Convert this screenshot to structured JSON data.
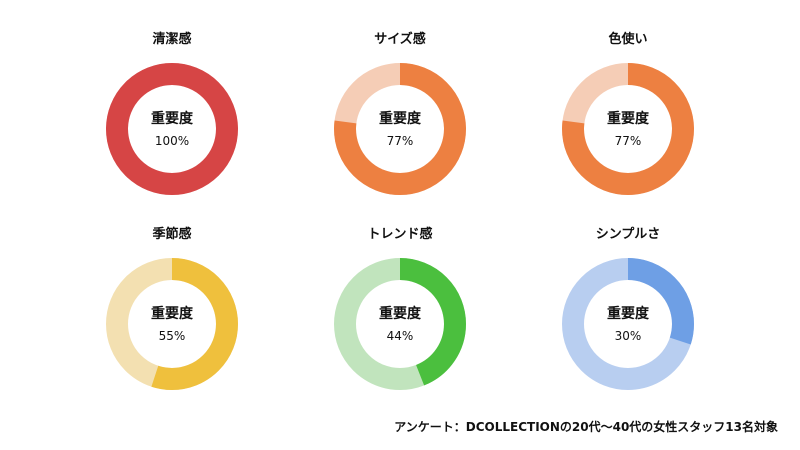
{
  "chart_data": {
    "type": "pie",
    "subtype": "donut",
    "center_label": "重要度",
    "charts": [
      {
        "title": "清潔感",
        "value": 100,
        "display": "100%",
        "color": "#d64545",
        "track": "#f2c4c4"
      },
      {
        "title": "サイズ感",
        "value": 77,
        "display": "77%",
        "color": "#ed8041",
        "track": "#f5cdb6"
      },
      {
        "title": "色使い",
        "value": 77,
        "display": "77%",
        "color": "#ed8041",
        "track": "#f5cdb6"
      },
      {
        "title": "季節感",
        "value": 55,
        "display": "55%",
        "color": "#efc03d",
        "track": "#f3e0b1"
      },
      {
        "title": "トレンド感",
        "value": 44,
        "display": "44%",
        "color": "#4bbf3e",
        "track": "#c1e4bd"
      },
      {
        "title": "シンプルさ",
        "value": 30,
        "display": "30%",
        "color": "#6e9fe5",
        "track": "#b8cef0"
      }
    ]
  },
  "footer": "アンケート：DCOLLECTIONの20代〜40代の女性スタッフ13名対象"
}
